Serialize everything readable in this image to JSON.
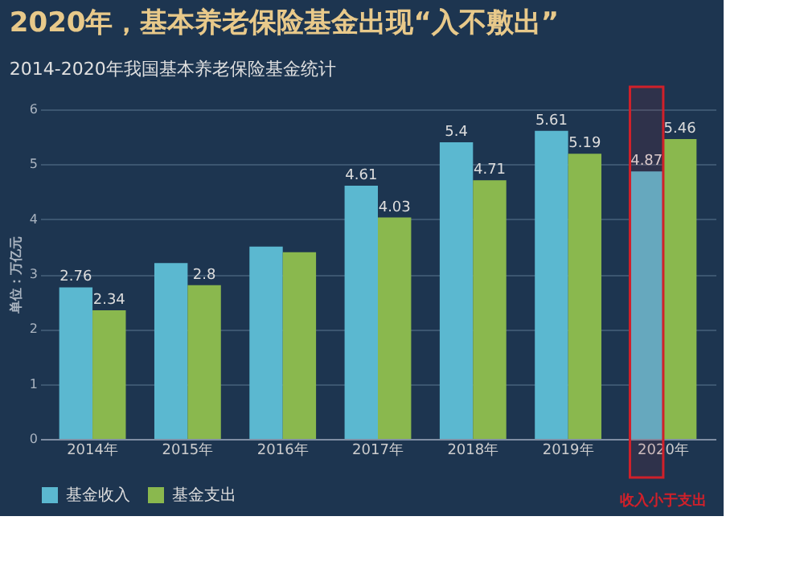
{
  "chart_data": {
    "type": "bar",
    "title": "2020年，基本养老保险基金出现“入不敷出”",
    "subtitle": "2014-2020年我国基本养老保险基金统计",
    "ylabel": "单位：万亿元",
    "categories": [
      "2014年",
      "2015年",
      "2016年",
      "2017年",
      "2018年",
      "2019年",
      "2020年"
    ],
    "series": [
      {
        "name": "基金收入",
        "color": "#5bb8d0",
        "values": [
          2.76,
          3.2,
          3.5,
          4.61,
          5.4,
          5.61,
          4.87
        ],
        "value_labels": [
          "2.76",
          null,
          null,
          "4.61",
          "5.4",
          "5.61",
          "4.87"
        ]
      },
      {
        "name": "基金支出",
        "color": "#8ab84e",
        "values": [
          2.34,
          2.8,
          3.4,
          4.03,
          4.71,
          5.19,
          5.46
        ],
        "value_labels": [
          "2.34",
          "2.8",
          null,
          "4.03",
          "4.71",
          "5.19",
          "5.46"
        ]
      }
    ],
    "ylim": [
      0,
      6
    ],
    "yticks": [
      0,
      1,
      2,
      3,
      4,
      5,
      6
    ],
    "grid": "y",
    "legend": "bottom",
    "bands": [
      {
        "axis": "x",
        "from": "2020年",
        "to": "2020年",
        "label": "收入小于支出",
        "color": "#d0202a"
      }
    ]
  }
}
